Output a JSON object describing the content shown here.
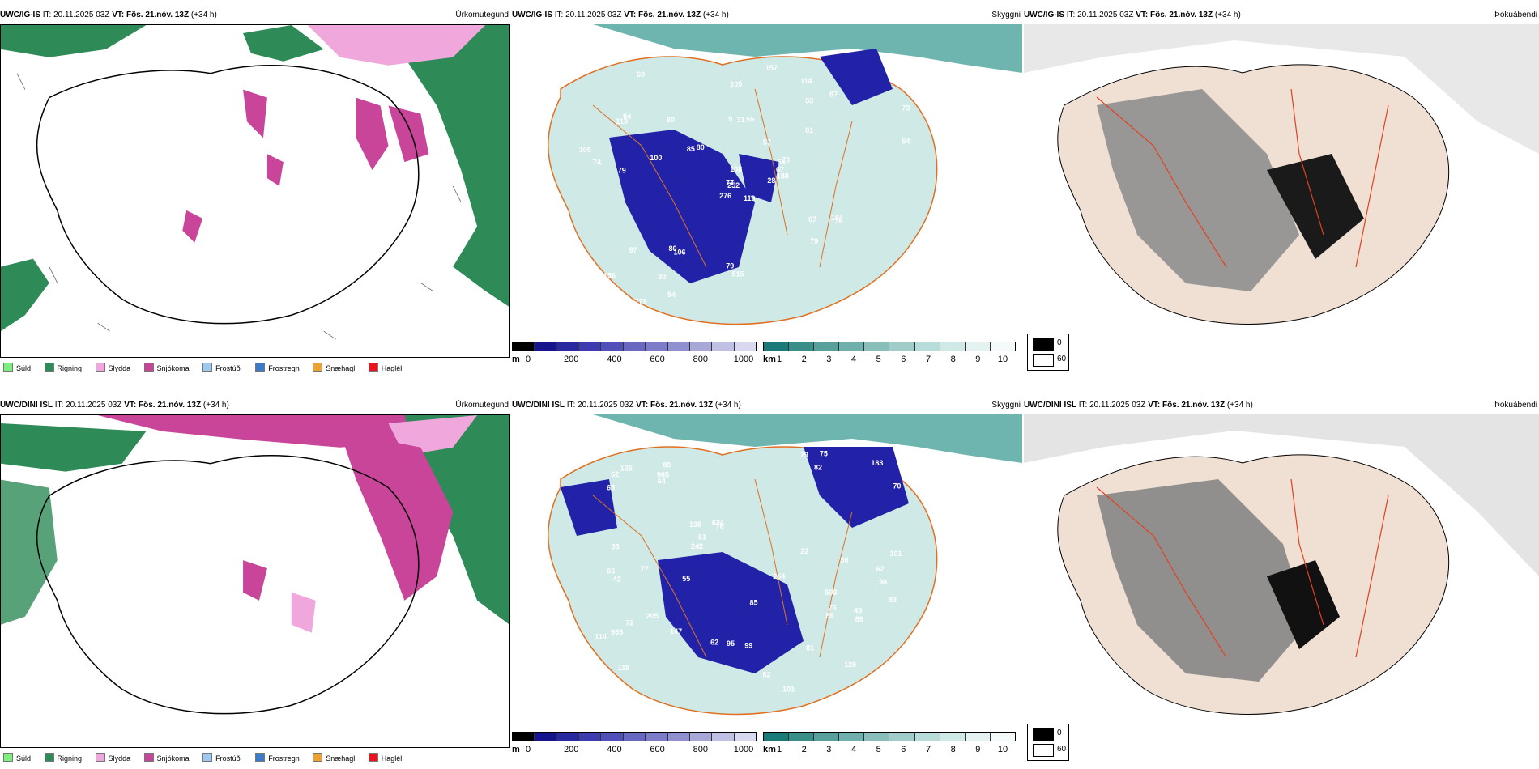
{
  "init_label": "IT:",
  "init_time": "20.11.2025 03Z",
  "valid_label": "VT:",
  "valid_time": "Fös. 21.nóv. 13Z",
  "lead": "(+34 h)",
  "rows": [
    {
      "model": "UWC/IG-IS",
      "ceiling_numbers": [
        "110",
        "119",
        "252",
        "156",
        "64",
        "106",
        "114",
        "55",
        "53",
        "28",
        "60",
        "47",
        "79",
        "73",
        "276",
        "81",
        "279",
        "9",
        "57",
        "97",
        "80",
        "74",
        "80",
        "31",
        "70",
        "36",
        "94",
        "105",
        "74",
        "67",
        "54",
        "77",
        "79",
        "108",
        "80",
        "87",
        "80",
        "230",
        "141",
        "184",
        "157",
        "85",
        "100",
        "79",
        "94",
        "105",
        "67",
        "95",
        "515",
        "188"
      ]
    },
    {
      "model": "UWC/DINI ISL",
      "ceiling_numbers": [
        "503",
        "98",
        "118",
        "80",
        "76",
        "128",
        "953",
        "82",
        "135",
        "101",
        "65",
        "66",
        "62",
        "77",
        "62",
        "101",
        "85",
        "264",
        "634",
        "205",
        "302",
        "183",
        "242",
        "83",
        "79",
        "965",
        "76",
        "42",
        "64",
        "56",
        "82",
        "81",
        "61",
        "55",
        "62",
        "89",
        "86",
        "77",
        "99",
        "72",
        "70",
        "75",
        "91",
        "95",
        "48",
        "147",
        "114",
        "126",
        "22",
        "33"
      ]
    }
  ],
  "panel_titles": {
    "precip": "Úrkomutegund",
    "ceiling": "Skyggni",
    "cloud": "Þokuábendi"
  },
  "precip_legend": [
    {
      "label": "Súld",
      "color": "#7cf07c"
    },
    {
      "label": "Rigning",
      "color": "#2e8b57"
    },
    {
      "label": "Slydda",
      "color": "#f0a8dc"
    },
    {
      "label": "Snjókoma",
      "color": "#c8459a"
    },
    {
      "label": "Frostúði",
      "color": "#9ec8f0"
    },
    {
      "label": "Frostregn",
      "color": "#3a7ac8"
    },
    {
      "label": "Snæhagl",
      "color": "#f0a030"
    },
    {
      "label": "Haglél",
      "color": "#e8141e"
    }
  ],
  "ceiling_scale": {
    "unit": "m",
    "ticks": [
      "0",
      "200",
      "400",
      "600",
      "800",
      "1000"
    ],
    "colors": [
      "#000000",
      "#14148c",
      "#2828a0",
      "#3c3cb0",
      "#5050b8",
      "#6868c0",
      "#7c7cc8",
      "#9090d0",
      "#a8a8d8",
      "#c0c0e4",
      "#d8d8f0"
    ]
  },
  "visibility_scale": {
    "unit": "km",
    "ticks": [
      "1",
      "2",
      "3",
      "4",
      "5",
      "6",
      "7",
      "8",
      "9",
      "10"
    ],
    "colors": [
      "#1a7a78",
      "#3a8e8a",
      "#58a09c",
      "#70b0ac",
      "#88bfbb",
      "#a0cdca",
      "#b8dcd9",
      "#cfe9e7",
      "#e4f3f2",
      "#f4fafa"
    ]
  },
  "cloud_legend": {
    "top": "0",
    "bottom": "60"
  },
  "colors": {
    "rain": "#2e8b57",
    "snow": "#c8459a",
    "sleet": "#f0a8dc",
    "drizzle": "#7cf07c",
    "ceiling_blue": "#2222a8",
    "vis_teal": "#3a9a94",
    "rivers": "#e07020",
    "coast": "#000000"
  }
}
